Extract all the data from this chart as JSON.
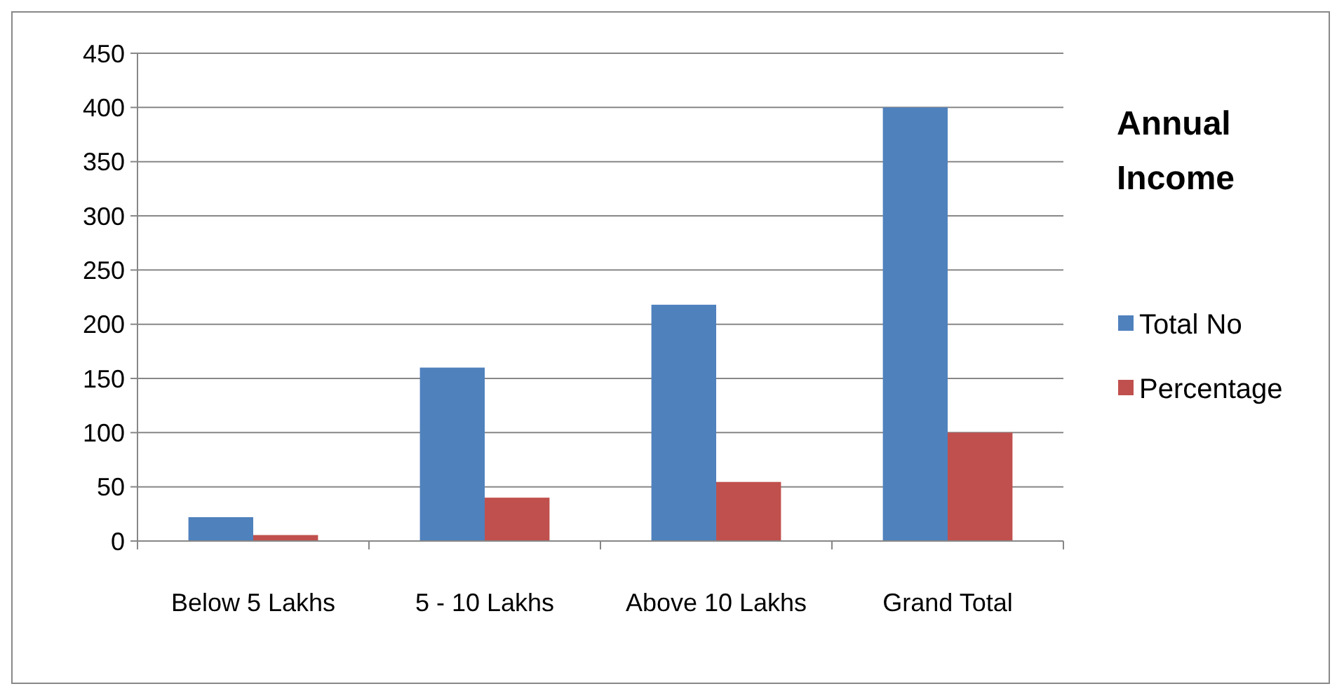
{
  "chart_data": {
    "type": "bar",
    "title": "Annual Income",
    "categories": [
      "Below 5 Lakhs",
      "5 - 10 Lakhs",
      "Above 10 Lakhs",
      "Grand Total"
    ],
    "series": [
      {
        "name": "Total No",
        "color": "#4f81bd",
        "values": [
          22,
          160,
          218,
          400
        ]
      },
      {
        "name": "Percentage",
        "color": "#c0504d",
        "values": [
          5.5,
          40,
          54.5,
          100
        ]
      }
    ],
    "ylim": [
      0,
      450
    ],
    "yticks": [
      0,
      50,
      100,
      150,
      200,
      250,
      300,
      350,
      400,
      450
    ],
    "grid": "y",
    "legend": "right"
  }
}
